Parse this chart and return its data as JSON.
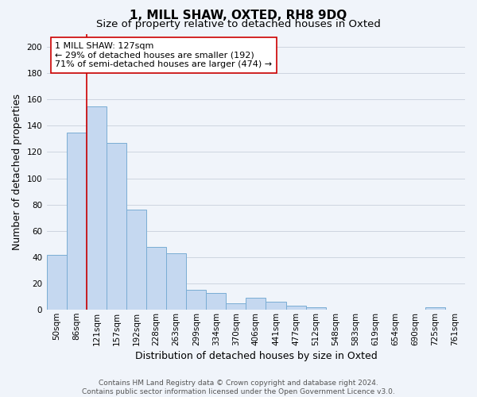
{
  "title": "1, MILL SHAW, OXTED, RH8 9DQ",
  "subtitle": "Size of property relative to detached houses in Oxted",
  "xlabel": "Distribution of detached houses by size in Oxted",
  "ylabel": "Number of detached properties",
  "footer_line1": "Contains HM Land Registry data © Crown copyright and database right 2024.",
  "footer_line2": "Contains public sector information licensed under the Open Government Licence v3.0.",
  "categories": [
    "50sqm",
    "86sqm",
    "121sqm",
    "157sqm",
    "192sqm",
    "228sqm",
    "263sqm",
    "299sqm",
    "334sqm",
    "370sqm",
    "406sqm",
    "441sqm",
    "477sqm",
    "512sqm",
    "548sqm",
    "583sqm",
    "619sqm",
    "654sqm",
    "690sqm",
    "725sqm",
    "761sqm"
  ],
  "bar_heights": [
    42,
    135,
    155,
    127,
    76,
    48,
    43,
    15,
    13,
    5,
    9,
    6,
    3,
    2,
    0,
    0,
    0,
    0,
    0,
    2,
    0
  ],
  "bar_color": "#c5d8f0",
  "bar_edge_color": "#7aadd4",
  "vline_color": "#cc0000",
  "annotation_line1": "1 MILL SHAW: 127sqm",
  "annotation_line2": "← 29% of detached houses are smaller (192)",
  "annotation_line3": "71% of semi-detached houses are larger (474) →",
  "annotation_box_color": "white",
  "annotation_box_edge": "#cc0000",
  "ylim": [
    0,
    210
  ],
  "yticks": [
    0,
    20,
    40,
    60,
    80,
    100,
    120,
    140,
    160,
    180,
    200
  ],
  "grid_color": "#c8d0dc",
  "bg_color": "#f0f4fa",
  "title_fontsize": 11,
  "subtitle_fontsize": 9.5,
  "axis_label_fontsize": 9,
  "tick_fontsize": 7.5,
  "annotation_fontsize": 8,
  "footer_fontsize": 6.5
}
